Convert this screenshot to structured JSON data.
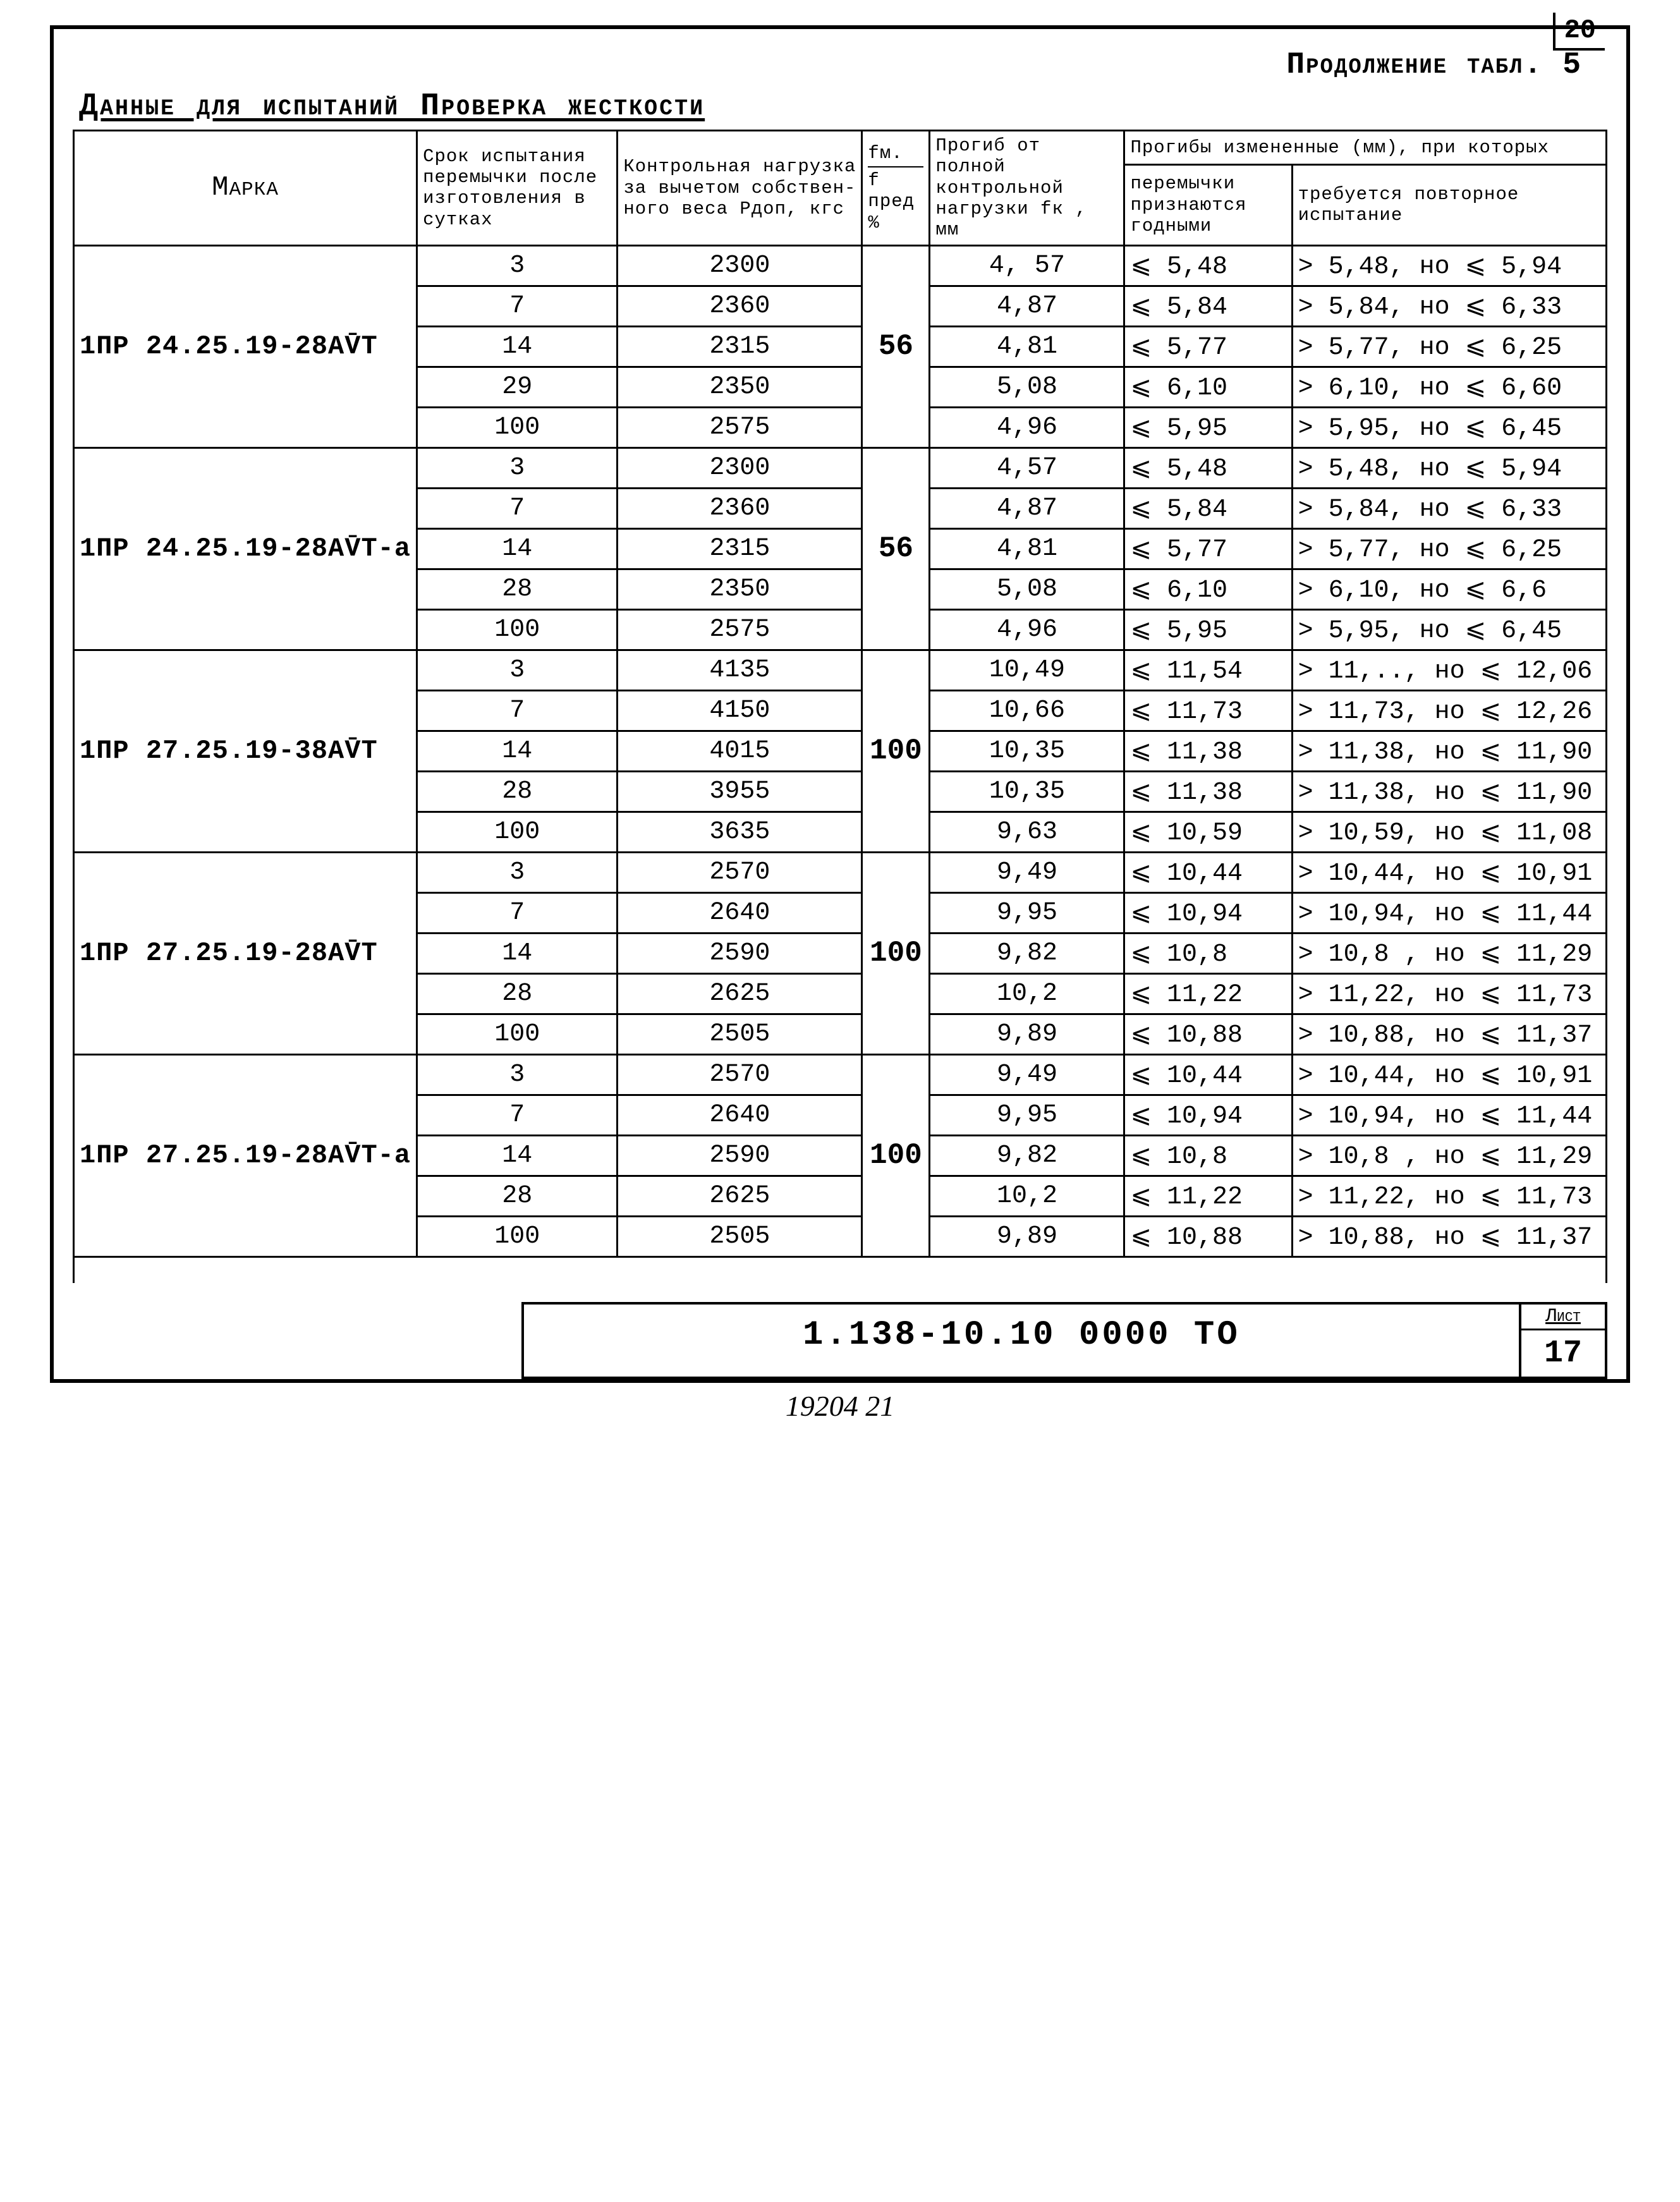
{
  "page_number_top": "20",
  "continuation_label": "Продолжение табл. 5",
  "title": "Данные для испытаний Проверка жесткости",
  "headers": {
    "marka": "Марка",
    "srok": "Срок испы­тания пе­ремычки после из­готовле­ния в сутках",
    "kontrol": "Контрольная нагрузка за вычетом собствен­ного веса Pдоп, кгс",
    "fm": "fм.",
    "fpred": "f пред",
    "pct": "%",
    "progib": "Прогиб от полной контроль­ной нагруз­ки fк , мм",
    "izmen_group": "Прогибы измененные (мм), при которых",
    "priznaet": "перемычки признаются годными",
    "povtor": "требуется повтор­ное испытание"
  },
  "groups": [
    {
      "marka": "1ПР 24.25.19-28АV̄Т",
      "pct": "56",
      "rows": [
        {
          "srok": "3",
          "p": "2300",
          "fk": "4, 57",
          "ok": "⩽ 5,48",
          "re": "> 5,48, но ⩽ 5,94"
        },
        {
          "srok": "7",
          "p": "2360",
          "fk": "4,87",
          "ok": "⩽ 5,84",
          "re": "> 5,84, но ⩽ 6,33"
        },
        {
          "srok": "14",
          "p": "2315",
          "fk": "4,81",
          "ok": "⩽ 5,77",
          "re": "> 5,77, но ⩽ 6,25"
        },
        {
          "srok": "29",
          "p": "2350",
          "fk": "5,08",
          "ok": "⩽ 6,10",
          "re": "> 6,10, но ⩽ 6,60"
        },
        {
          "srok": "100",
          "p": "2575",
          "fk": "4,96",
          "ok": "⩽ 5,95",
          "re": "> 5,95, но ⩽ 6,45"
        }
      ]
    },
    {
      "marka": "1ПР 24.25.19-28АV̄Т-а",
      "pct": "56",
      "rows": [
        {
          "srok": "3",
          "p": "2300",
          "fk": "4,57",
          "ok": "⩽ 5,48",
          "re": "> 5,48, но ⩽ 5,94"
        },
        {
          "srok": "7",
          "p": "2360",
          "fk": "4,87",
          "ok": "⩽ 5,84",
          "re": "> 5,84, но ⩽ 6,33"
        },
        {
          "srok": "14",
          "p": "2315",
          "fk": "4,81",
          "ok": "⩽ 5,77",
          "re": "> 5,77, но ⩽ 6,25"
        },
        {
          "srok": "28",
          "p": "2350",
          "fk": "5,08",
          "ok": "⩽ 6,10",
          "re": "> 6,10, но ⩽ 6,6"
        },
        {
          "srok": "100",
          "p": "2575",
          "fk": "4,96",
          "ok": "⩽ 5,95",
          "re": "> 5,95, но ⩽ 6,45"
        }
      ]
    },
    {
      "marka": "1ПР 27.25.19-38АV̄Т",
      "pct": "100",
      "rows": [
        {
          "srok": "3",
          "p": "4135",
          "fk": "10,49",
          "ok": "⩽ 11,54",
          "re": "> 11,.., но ⩽ 12,06"
        },
        {
          "srok": "7",
          "p": "4150",
          "fk": "10,66",
          "ok": "⩽ 11,73",
          "re": "> 11,73, но ⩽ 12,26"
        },
        {
          "srok": "14",
          "p": "4015",
          "fk": "10,35",
          "ok": "⩽ 11,38",
          "re": "> 11,38, но ⩽ 11,90"
        },
        {
          "srok": "28",
          "p": "3955",
          "fk": "10,35",
          "ok": "⩽ 11,38",
          "re": "> 11,38, но ⩽ 11,90"
        },
        {
          "srok": "100",
          "p": "3635",
          "fk": "9,63",
          "ok": "⩽ 10,59",
          "re": "> 10,59, но ⩽ 11,08"
        }
      ]
    },
    {
      "marka": "1ПР 27.25.19-28АV̄Т",
      "pct": "100",
      "rows": [
        {
          "srok": "3",
          "p": "2570",
          "fk": "9,49",
          "ok": "⩽ 10,44",
          "re": "> 10,44, но ⩽ 10,91"
        },
        {
          "srok": "7",
          "p": "2640",
          "fk": "9,95",
          "ok": "⩽ 10,94",
          "re": "> 10,94, но ⩽ 11,44"
        },
        {
          "srok": "14",
          "p": "2590",
          "fk": "9,82",
          "ok": "⩽ 10,8",
          "re": "> 10,8 , но ⩽ 11,29"
        },
        {
          "srok": "28",
          "p": "2625",
          "fk": "10,2",
          "ok": "⩽ 11,22",
          "re": "> 11,22, но ⩽ 11,73"
        },
        {
          "srok": "100",
          "p": "2505",
          "fk": "9,89",
          "ok": "⩽ 10,88",
          "re": "> 10,88, но ⩽ 11,37"
        }
      ]
    },
    {
      "marka": "1ПР 27.25.19-28АV̄Т-а",
      "pct": "100",
      "rows": [
        {
          "srok": "3",
          "p": "2570",
          "fk": "9,49",
          "ok": "⩽ 10,44",
          "re": "> 10,44, но ⩽ 10,91"
        },
        {
          "srok": "7",
          "p": "2640",
          "fk": "9,95",
          "ok": "⩽ 10,94",
          "re": "> 10,94, но ⩽ 11,44"
        },
        {
          "srok": "14",
          "p": "2590",
          "fk": "9,82",
          "ok": "⩽ 10,8",
          "re": "> 10,8 , но ⩽ 11,29"
        },
        {
          "srok": "28",
          "p": "2625",
          "fk": "10,2",
          "ok": "⩽ 11,22",
          "re": "> 11,22, но ⩽ 11,73"
        },
        {
          "srok": "100",
          "p": "2505",
          "fk": "9,89",
          "ok": "⩽ 10,88",
          "re": "> 10,88, но ⩽ 11,37"
        }
      ]
    }
  ],
  "footer": {
    "docnum": "1.138-10.10   0000   ТО",
    "sheet_label": "Лист",
    "sheet_num": "17"
  },
  "handwritten_bottom": "19204  21"
}
